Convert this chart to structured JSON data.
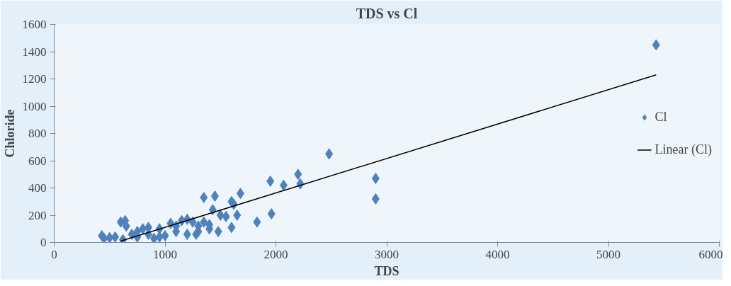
{
  "chart_data": {
    "type": "scatter",
    "title": "TDS vs Cl",
    "xlabel": "TDS",
    "ylabel": "Chloride",
    "xlim": [
      0,
      6000
    ],
    "xticks": [
      0,
      1000,
      2000,
      3000,
      4000,
      5000,
      6000
    ],
    "ylim": [
      0,
      1600
    ],
    "yticks": [
      0,
      200,
      400,
      600,
      800,
      1000,
      1200,
      1400,
      1600
    ],
    "grid": false,
    "legend": "right",
    "series": [
      {
        "name": "Cl",
        "color": "#4f81bd",
        "marker": "diamond",
        "x": [
          430,
          450,
          500,
          550,
          600,
          640,
          650,
          620,
          700,
          750,
          750,
          800,
          850,
          850,
          900,
          950,
          950,
          1000,
          1050,
          1100,
          1100,
          1150,
          1200,
          1200,
          1250,
          1300,
          1280,
          1300,
          1350,
          1350,
          1400,
          1400,
          1430,
          1450,
          1480,
          1500,
          1550,
          1600,
          1620,
          1600,
          1650,
          1680,
          1830,
          1950,
          1960,
          2070,
          2200,
          2220,
          2480,
          2900,
          2900,
          5430
        ],
        "values": [
          50,
          30,
          35,
          40,
          150,
          160,
          120,
          20,
          60,
          80,
          40,
          100,
          60,
          110,
          30,
          40,
          100,
          50,
          140,
          120,
          80,
          160,
          170,
          60,
          150,
          120,
          60,
          80,
          330,
          150,
          100,
          130,
          240,
          340,
          80,
          200,
          190,
          300,
          280,
          110,
          200,
          360,
          150,
          450,
          210,
          420,
          500,
          430,
          650,
          470,
          320,
          1450
        ]
      },
      {
        "name": "Linear (Cl)",
        "color": "#000000",
        "type": "line",
        "line_style": "solid",
        "x": [
          600,
          5430
        ],
        "values": [
          10,
          1230
        ]
      }
    ]
  }
}
